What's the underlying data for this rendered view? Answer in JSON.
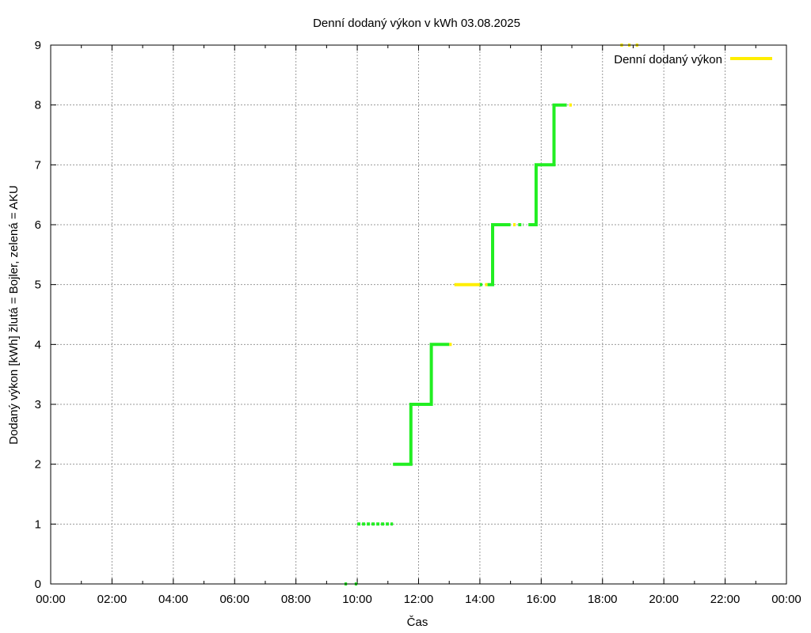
{
  "chart_data": {
    "type": "line",
    "title": "Denní dodaný výkon v kWh 03.08.2025",
    "xlabel": "Čas",
    "ylabel": "Dodaný výkon [kWh]  žlutá = Bojler, zelená = AKU",
    "xlim": [
      "00:00",
      "24:00"
    ],
    "ylim": [
      0,
      9
    ],
    "x_ticks": [
      "00:00",
      "02:00",
      "04:00",
      "06:00",
      "08:00",
      "10:00",
      "12:00",
      "14:00",
      "16:00",
      "18:00",
      "20:00",
      "22:00",
      "00:00"
    ],
    "y_ticks": [
      "0",
      "1",
      "2",
      "3",
      "4",
      "5",
      "6",
      "7",
      "8",
      "9"
    ],
    "grid": true,
    "legend": {
      "position": "top-right",
      "label": "Denní dodaný výkon",
      "color": "#ffee00"
    },
    "colors": {
      "bojler": "#ffee00",
      "aku": "#22ee22"
    },
    "series": [
      {
        "name": "Denní dodaný výkon",
        "color": "#ffee00",
        "style": "steps",
        "segments": [
          {
            "x": [
              "13:10",
              "14:00"
            ],
            "y": [
              5,
              5
            ]
          },
          {
            "x": [
              "14:10",
              "14:15"
            ],
            "y": [
              5,
              5
            ]
          },
          {
            "x": [
              "13:00",
              "13:05"
            ],
            "y": [
              4,
              4
            ]
          },
          {
            "x": [
              "15:05",
              "15:10"
            ],
            "y": [
              6,
              6
            ]
          },
          {
            "x": [
              "16:55",
              "17:00"
            ],
            "y": [
              8,
              8
            ]
          },
          {
            "x": [
              "18:35",
              "18:40"
            ],
            "y": [
              9,
              9
            ]
          },
          {
            "x": [
              "18:50",
              "18:55"
            ],
            "y": [
              9,
              9
            ]
          },
          {
            "x": [
              "19:05",
              "19:10"
            ],
            "y": [
              9,
              9
            ]
          }
        ]
      },
      {
        "color": "#22ee22",
        "style": "steps",
        "segments": [
          {
            "x": [
              "09:35",
              "09:40"
            ],
            "y": [
              0,
              0
            ]
          },
          {
            "x": [
              "09:55",
              "10:00"
            ],
            "y": [
              0,
              0
            ]
          },
          {
            "x": [
              "10:00",
              "11:10"
            ],
            "y": [
              1,
              1
            ],
            "dashed": true
          },
          {
            "x": [
              "11:10",
              "11:45",
              "11:45",
              "12:25",
              "12:25",
              "13:00"
            ],
            "y": [
              2,
              2,
              3,
              3,
              4,
              4
            ]
          },
          {
            "x": [
              "14:00",
              "14:05"
            ],
            "y": [
              5,
              5
            ]
          },
          {
            "x": [
              "14:15",
              "14:25",
              "14:25",
              "15:00"
            ],
            "y": [
              5,
              5,
              6,
              6
            ]
          },
          {
            "x": [
              "15:15",
              "15:25"
            ],
            "y": [
              6,
              6
            ],
            "dashed": true
          },
          {
            "x": [
              "15:35",
              "15:50",
              "15:50",
              "16:25",
              "16:25",
              "16:50"
            ],
            "y": [
              6,
              6,
              7,
              7,
              8,
              8
            ]
          }
        ]
      }
    ]
  }
}
